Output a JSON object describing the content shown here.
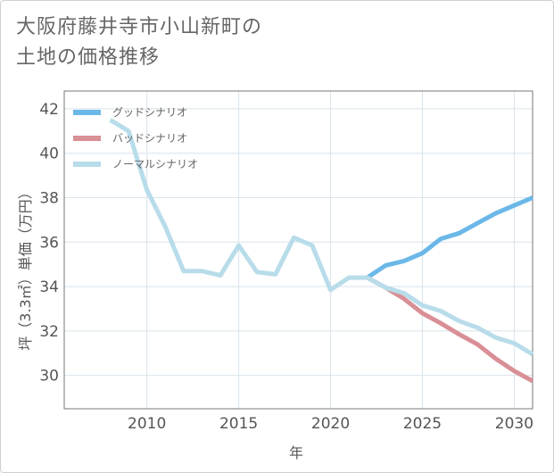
{
  "title_line1": "大阪府藤井寺市小山新町の",
  "title_line2": "土地の価格推移",
  "chart_data": {
    "type": "line",
    "title": "大阪府藤井寺市小山新町の土地の価格推移",
    "xlabel": "年",
    "ylabel": "坪（3.3㎡）単価（万円）",
    "xlim": [
      2005.5,
      2031
    ],
    "ylim": [
      28.5,
      42.8
    ],
    "xticks": [
      2010,
      2015,
      2020,
      2025,
      2030
    ],
    "yticks": [
      30,
      32,
      34,
      36,
      38,
      40,
      42
    ],
    "grid": true,
    "legend_position": "top-left",
    "series": [
      {
        "name": "グッドシナリオ",
        "color": "#6bb8e8",
        "x": [
          2022,
          2023,
          2024,
          2025,
          2026,
          2027,
          2028,
          2029,
          2030,
          2031
        ],
        "y": [
          34.4,
          34.95,
          35.15,
          35.5,
          36.15,
          36.4,
          36.85,
          37.3,
          37.65,
          38.0
        ]
      },
      {
        "name": "バッドシナリオ",
        "color": "#d98f96",
        "x": [
          2022,
          2023,
          2024,
          2025,
          2026,
          2027,
          2028,
          2029,
          2030,
          2031
        ],
        "y": [
          34.4,
          33.95,
          33.45,
          32.8,
          32.35,
          31.85,
          31.4,
          30.75,
          30.2,
          29.75
        ]
      },
      {
        "name": "ノーマルシナリオ",
        "color": "#b8dcea",
        "x": [
          2008,
          2009,
          2010,
          2011,
          2012,
          2013,
          2014,
          2015,
          2016,
          2017,
          2018,
          2019,
          2020,
          2021,
          2022,
          2023,
          2024,
          2025,
          2026,
          2027,
          2028,
          2029,
          2030,
          2031
        ],
        "y": [
          41.5,
          41.0,
          38.35,
          36.7,
          34.7,
          34.7,
          34.5,
          35.85,
          34.65,
          34.55,
          36.2,
          35.85,
          33.85,
          34.4,
          34.4,
          33.95,
          33.7,
          33.15,
          32.9,
          32.45,
          32.15,
          31.7,
          31.45,
          30.95
        ]
      }
    ]
  }
}
